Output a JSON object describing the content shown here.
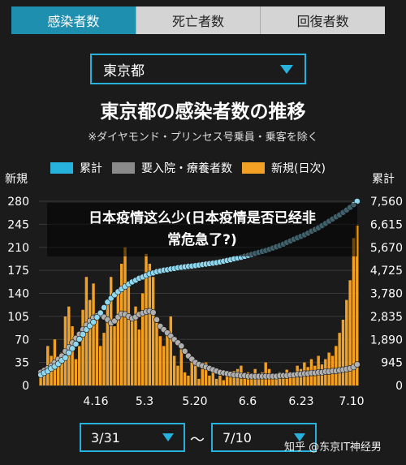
{
  "tabs": [
    {
      "label": "感染者数",
      "active": true
    },
    {
      "label": "死亡者数",
      "active": false
    },
    {
      "label": "回復者数",
      "active": false
    }
  ],
  "region_select": {
    "value": "東京都"
  },
  "range": {
    "start": "3/31",
    "end": "7/10",
    "separator": "〜"
  },
  "overlay_text": {
    "line1": "日本疫情这么少(日本疫情是否已经非",
    "line2": "常危急了?)"
  },
  "watermark": "知乎 @东京IT神经男",
  "colors": {
    "cumulative": "#27b2de",
    "hospitalized": "#8a8a8a",
    "new": "#f2a125",
    "background": "#1b1b1b"
  },
  "chart_data": {
    "type": "bar",
    "title": "東京都の感染者数の推移",
    "subtitle": "※ダイヤモンド・プリンセス号乗員・乗客を除く",
    "left_axis_label": "新規",
    "right_axis_label": "累計",
    "left_ticks": [
      "280",
      "245",
      "210",
      "175",
      "140",
      "105",
      "70",
      "35",
      "0"
    ],
    "right_ticks": [
      "7,560",
      "6,615",
      "5,670",
      "4,725",
      "3,780",
      "2,835",
      "1,890",
      "945",
      "0"
    ],
    "x_tick_labels": [
      "4.16",
      "5.3",
      "5.20",
      "6.6",
      "6.23",
      "7.10"
    ],
    "y_left_range": [
      0,
      280
    ],
    "y_right_range": [
      0,
      7560
    ],
    "grid": true,
    "legend_position": "top",
    "series": [
      {
        "name": "累計",
        "key": "cumulative",
        "type": "line",
        "values": [
          440,
          520,
          590,
          700,
          780,
          890,
          1030,
          1140,
          1340,
          1520,
          1700,
          1900,
          2100,
          2300,
          2450,
          2600,
          2800,
          2980,
          3200,
          3420,
          3580,
          3720,
          3850,
          3960,
          4060,
          4160,
          4250,
          4320,
          4400,
          4450,
          4520,
          4580,
          4620,
          4670,
          4700,
          4730,
          4750,
          4780,
          4800,
          4830,
          4850,
          4870,
          4890,
          4900,
          4920,
          4940,
          4960,
          4980,
          5000,
          5020,
          5040,
          5070,
          5100,
          5130,
          5160,
          5200,
          5230,
          5260,
          5300,
          5340,
          5380,
          5420,
          5460,
          5500,
          5540,
          5590,
          5640,
          5690,
          5740,
          5800,
          5870,
          5930,
          6000,
          6060,
          6120,
          6180,
          6250,
          6330,
          6400,
          6470,
          6560,
          6650,
          6740,
          6830,
          6920,
          7000,
          7100,
          7200,
          7310,
          7420,
          7560
        ]
      },
      {
        "name": "要入院・療養者数",
        "key": "hospitalized",
        "type": "line",
        "values": [
          20,
          23,
          26,
          30,
          35,
          40,
          45,
          52,
          58,
          65,
          72,
          78,
          85,
          92,
          98,
          103,
          106,
          108,
          104,
          100,
          95,
          98,
          104,
          109,
          108,
          105,
          102,
          104,
          108,
          110,
          112,
          113,
          111,
          100,
          90,
          85,
          80,
          75,
          70,
          65,
          60,
          52,
          45,
          40,
          35,
          32,
          30,
          28,
          26,
          24,
          22,
          20,
          19,
          18,
          17,
          16,
          16,
          15,
          15,
          14,
          14,
          14,
          14,
          14,
          14,
          14,
          14,
          14,
          15,
          15,
          15,
          16,
          16,
          17,
          17,
          18,
          18,
          19,
          19,
          20,
          20,
          21,
          21,
          22,
          22,
          23,
          24,
          25,
          26,
          28,
          32
        ]
      },
      {
        "name": "新規(日次)",
        "key": "new",
        "type": "bar",
        "values": [
          20,
          15,
          60,
          45,
          70,
          35,
          50,
          105,
          120,
          90,
          40,
          60,
          115,
          165,
          130,
          155,
          110,
          60,
          80,
          125,
          165,
          90,
          140,
          185,
          210,
          150,
          105,
          120,
          85,
          140,
          200,
          185,
          165,
          95,
          75,
          60,
          80,
          105,
          45,
          30,
          55,
          20,
          15,
          35,
          30,
          10,
          25,
          35,
          15,
          20,
          10,
          15,
          8,
          20,
          15,
          22,
          25,
          30,
          15,
          20,
          18,
          25,
          10,
          20,
          35,
          25,
          15,
          12,
          20,
          18,
          24,
          14,
          20,
          30,
          25,
          35,
          28,
          40,
          30,
          45,
          32,
          40,
          50,
          45,
          60,
          80,
          100,
          130,
          160,
          224,
          243
        ]
      }
    ]
  }
}
